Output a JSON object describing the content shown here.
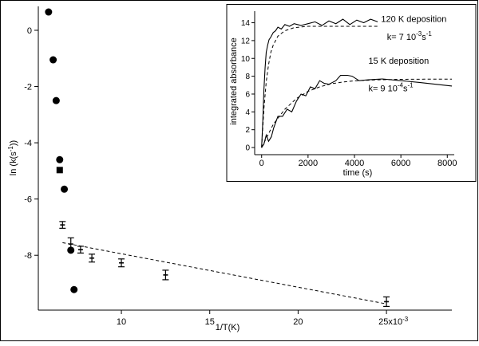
{
  "chart_data": [
    {
      "type": "scatter",
      "xlabel": "1/T(K)",
      "ylabel": "ln (k(s^-1))",
      "xlim": [
        0.0053,
        0.0287
      ],
      "ylim": [
        -9.95,
        0.85
      ],
      "x_ticks": [
        {
          "value": 0.01,
          "label": "10"
        },
        {
          "value": 0.015,
          "label": "15"
        },
        {
          "value": 0.02,
          "label": "20"
        },
        {
          "value": 0.025,
          "label": "25x10"
        }
      ],
      "x_tick_suffix": "-3",
      "y_ticks": [
        0,
        -2,
        -4,
        -6,
        -8
      ],
      "series": [
        {
          "marker": "circle",
          "points": [
            {
              "x": 0.00588,
              "y": 0.65
            },
            {
              "x": 0.00614,
              "y": -1.05
            },
            {
              "x": 0.00631,
              "y": -2.5
            },
            {
              "x": 0.00651,
              "y": -4.6
            },
            {
              "x": 0.00677,
              "y": -5.65
            },
            {
              "x": 0.00714,
              "y": -7.82
            },
            {
              "x": 0.00732,
              "y": -9.22
            }
          ]
        },
        {
          "marker": "square",
          "points": [
            {
              "x": 0.00651,
              "y": -4.97
            }
          ]
        },
        {
          "marker": "errorbar",
          "points": [
            {
              "x": 0.00667,
              "y": -6.92,
              "err": 0.12
            },
            {
              "x": 0.00714,
              "y": -7.6,
              "err": 0.22
            },
            {
              "x": 0.00769,
              "y": -7.8,
              "err": 0.12
            },
            {
              "x": 0.00833,
              "y": -8.1,
              "err": 0.14
            },
            {
              "x": 0.01,
              "y": -8.27,
              "err": 0.14
            },
            {
              "x": 0.0125,
              "y": -8.7,
              "err": 0.17
            },
            {
              "x": 0.025,
              "y": -9.65,
              "err": 0.17
            }
          ]
        }
      ],
      "fit_line": {
        "x": [
          0.00667,
          0.025
        ],
        "y": [
          -7.55,
          -9.73
        ],
        "style": "dashed"
      }
    },
    {
      "type": "line",
      "xlabel": "time (s)",
      "ylabel": "integrated absorbance",
      "xlim": [
        -300,
        8300
      ],
      "ylim": [
        -0.8,
        15.3
      ],
      "x_ticks": [
        0,
        2000,
        4000,
        6000,
        8000
      ],
      "y_ticks": [
        0,
        2,
        4,
        6,
        8,
        10,
        12,
        14
      ],
      "annotations": [
        {
          "text": "120 K deposition",
          "x": 5150,
          "y": 14.1
        },
        {
          "text": "k= 7 10",
          "sup": "-3",
          "after": "s",
          "sup2": "-1",
          "x": 5400,
          "y": 12.1
        },
        {
          "text": "15 K deposition",
          "x": 4600,
          "y": 9.4
        },
        {
          "text": "k= 9 10",
          "sup": "-4",
          "after": "s",
          "sup2": "-1",
          "x": 4600,
          "y": 6.3
        }
      ],
      "series": [
        {
          "style": "solid",
          "points": [
            [
              0,
              0
            ],
            [
              50,
              3
            ],
            [
              100,
              6.5
            ],
            [
              150,
              9
            ],
            [
              200,
              10.7
            ],
            [
              260,
              11.5
            ],
            [
              320,
              12.1
            ],
            [
              400,
              12.4
            ],
            [
              500,
              12.9
            ],
            [
              600,
              13.1
            ],
            [
              700,
              13.5
            ],
            [
              850,
              13.3
            ],
            [
              1000,
              13.8
            ],
            [
              1200,
              13.6
            ],
            [
              1400,
              13.9
            ],
            [
              1700,
              13.7
            ],
            [
              2000,
              13.9
            ],
            [
              2300,
              14.1
            ],
            [
              2600,
              13.7
            ],
            [
              2900,
              14.2
            ],
            [
              3200,
              13.9
            ],
            [
              3500,
              14.4
            ],
            [
              3800,
              13.8
            ],
            [
              4100,
              14.3
            ],
            [
              4400,
              14.0
            ],
            [
              4700,
              14.4
            ],
            [
              5000,
              14.1
            ]
          ]
        },
        {
          "style": "dashed",
          "points": [
            [
              0,
              0
            ],
            [
              100,
              4.4
            ],
            [
              200,
              7.4
            ],
            [
              300,
              9.3
            ],
            [
              400,
              10.7
            ],
            [
              500,
              11.5
            ],
            [
              700,
              12.5
            ],
            [
              1000,
              13.1
            ],
            [
              1400,
              13.45
            ],
            [
              2000,
              13.6
            ],
            [
              3000,
              13.6
            ],
            [
              4000,
              13.6
            ],
            [
              5000,
              13.6
            ]
          ]
        },
        {
          "style": "solid",
          "points": [
            [
              0,
              0
            ],
            [
              100,
              0.4
            ],
            [
              200,
              1.4
            ],
            [
              300,
              0.7
            ],
            [
              420,
              1.2
            ],
            [
              520,
              2.2
            ],
            [
              700,
              3.5
            ],
            [
              900,
              3.5
            ],
            [
              1100,
              4.3
            ],
            [
              1300,
              4.0
            ],
            [
              1500,
              5.2
            ],
            [
              1700,
              6.0
            ],
            [
              1900,
              5.8
            ],
            [
              2100,
              6.8
            ],
            [
              2300,
              6.6
            ],
            [
              2500,
              7.5
            ],
            [
              2700,
              7.2
            ],
            [
              2900,
              7.1
            ],
            [
              3200,
              7.5
            ],
            [
              3400,
              8.1
            ],
            [
              3700,
              8.1
            ],
            [
              3900,
              8.0
            ],
            [
              4200,
              7.5
            ],
            [
              4600,
              7.6
            ],
            [
              5200,
              7.7
            ],
            [
              6000,
              7.5
            ],
            [
              6800,
              7.3
            ],
            [
              7500,
              7.1
            ],
            [
              8200,
              6.9
            ]
          ]
        },
        {
          "style": "dashed",
          "points": [
            [
              0,
              0
            ],
            [
              500,
              2.6
            ],
            [
              1000,
              4.3
            ],
            [
              1500,
              5.5
            ],
            [
              2000,
              6.3
            ],
            [
              2500,
              6.8
            ],
            [
              3000,
              7.15
            ],
            [
              3500,
              7.35
            ],
            [
              4000,
              7.48
            ],
            [
              5000,
              7.6
            ],
            [
              6000,
              7.65
            ],
            [
              7000,
              7.67
            ],
            [
              8200,
              7.68
            ]
          ]
        }
      ]
    }
  ]
}
